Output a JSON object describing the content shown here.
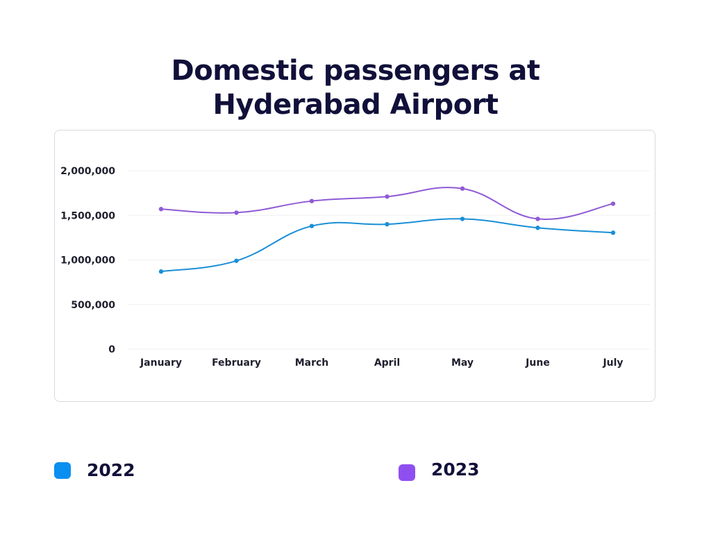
{
  "chart_data": {
    "type": "line",
    "title_lines": [
      "Domestic passengers at",
      "Hyderabad Airport"
    ],
    "categories": [
      "January",
      "February",
      "March",
      "April",
      "May",
      "June",
      "July"
    ],
    "yticks": [
      0,
      500000,
      1000000,
      1500000,
      2000000
    ],
    "ytick_labels": [
      "0",
      "500,000",
      "1,000,000",
      "1,500,000",
      "2,000,000"
    ],
    "ylim": [
      0,
      2000000
    ],
    "grid": true,
    "legend_position": "bottom",
    "series": [
      {
        "name": "2022",
        "color": "#1a8fd6",
        "swatch": "#0a8ef0",
        "values": [
          870000,
          990000,
          1380000,
          1400000,
          1460000,
          1360000,
          1305000
        ]
      },
      {
        "name": "2023",
        "color": "#8f5ad6",
        "swatch": "#8f4ff0",
        "values": [
          1570000,
          1530000,
          1660000,
          1710000,
          1800000,
          1460000,
          1630000
        ]
      }
    ]
  }
}
